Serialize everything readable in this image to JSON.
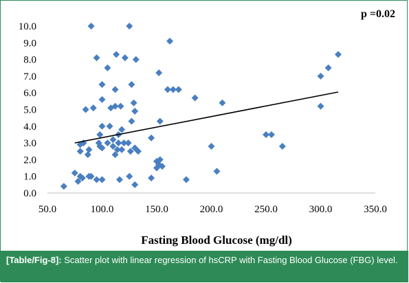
{
  "chart_data": {
    "type": "scatter",
    "title": "",
    "annotation": "p =0.02",
    "xlabel": "Fasting Blood Glucose (mg/dl)",
    "ylabel": "",
    "xlim": [
      50,
      350
    ],
    "ylim": [
      0,
      10
    ],
    "x_ticks": [
      "50.0",
      "100.0",
      "150.0",
      "200.0",
      "250.0",
      "300.0",
      "350.0"
    ],
    "y_ticks": [
      "0.0",
      "1.0",
      "2.0",
      "3.0",
      "4.0",
      "5.0",
      "6.0",
      "7.0",
      "8.0",
      "9.0",
      "10.0"
    ],
    "grid": false,
    "legend": "none",
    "marker_color": "#4a7fc1",
    "trendline": {
      "type": "linear",
      "color": "#000000",
      "x": [
        75,
        316
      ],
      "y": [
        3.0,
        6.05
      ]
    },
    "points": [
      [
        65,
        0.4
      ],
      [
        75,
        1.2
      ],
      [
        78,
        0.7
      ],
      [
        80,
        1.0
      ],
      [
        80,
        2.5
      ],
      [
        80,
        2.9
      ],
      [
        82,
        0.9
      ],
      [
        83,
        3.0
      ],
      [
        85,
        5.0
      ],
      [
        87,
        2.3
      ],
      [
        88,
        1.0
      ],
      [
        88,
        2.6
      ],
      [
        90,
        10.0
      ],
      [
        90,
        1.0
      ],
      [
        92,
        5.1
      ],
      [
        95,
        0.8
      ],
      [
        95,
        8.1
      ],
      [
        97,
        3.0
      ],
      [
        98,
        2.8
      ],
      [
        98,
        3.5
      ],
      [
        100,
        0.8
      ],
      [
        100,
        2.7
      ],
      [
        100,
        4.0
      ],
      [
        100,
        5.6
      ],
      [
        100,
        6.5
      ],
      [
        105,
        7.5
      ],
      [
        105,
        3.0
      ],
      [
        107,
        4.0
      ],
      [
        108,
        5.1
      ],
      [
        110,
        2.8
      ],
      [
        110,
        3.2
      ],
      [
        112,
        2.3
      ],
      [
        112,
        5.2
      ],
      [
        112,
        6.2
      ],
      [
        113,
        8.3
      ],
      [
        114,
        2.6
      ],
      [
        115,
        3.0
      ],
      [
        115,
        3.5
      ],
      [
        116,
        0.8
      ],
      [
        117,
        5.2
      ],
      [
        118,
        3.8
      ],
      [
        118,
        2.6
      ],
      [
        120,
        3.0
      ],
      [
        121,
        8.1
      ],
      [
        124,
        3.0
      ],
      [
        125,
        1.0
      ],
      [
        125,
        10.0
      ],
      [
        126,
        2.5
      ],
      [
        127,
        4.3
      ],
      [
        127,
        6.5
      ],
      [
        129,
        5.4
      ],
      [
        130,
        0.5
      ],
      [
        130,
        2.7
      ],
      [
        130,
        4.9
      ],
      [
        131,
        8.0
      ],
      [
        133,
        2.5
      ],
      [
        145,
        0.9
      ],
      [
        145,
        3.3
      ],
      [
        150,
        1.9
      ],
      [
        150,
        1.5
      ],
      [
        152,
        7.2
      ],
      [
        152,
        1.7
      ],
      [
        153,
        4.3
      ],
      [
        153,
        2.0
      ],
      [
        155,
        1.6
      ],
      [
        160,
        6.2
      ],
      [
        162,
        9.1
      ],
      [
        165,
        6.2
      ],
      [
        170,
        6.2
      ],
      [
        177,
        0.8
      ],
      [
        185,
        5.7
      ],
      [
        200,
        2.8
      ],
      [
        205,
        1.3
      ],
      [
        210,
        5.4
      ],
      [
        250,
        3.5
      ],
      [
        255,
        3.5
      ],
      [
        265,
        2.8
      ],
      [
        300,
        7.0
      ],
      [
        300,
        5.2
      ],
      [
        307,
        7.5
      ],
      [
        316,
        8.3
      ]
    ]
  },
  "caption": {
    "label": "[Table/Fig-8]:",
    "text": " Scatter plot with linear regression of hsCRP with Fasting Blood Glucose (FBG) level."
  }
}
